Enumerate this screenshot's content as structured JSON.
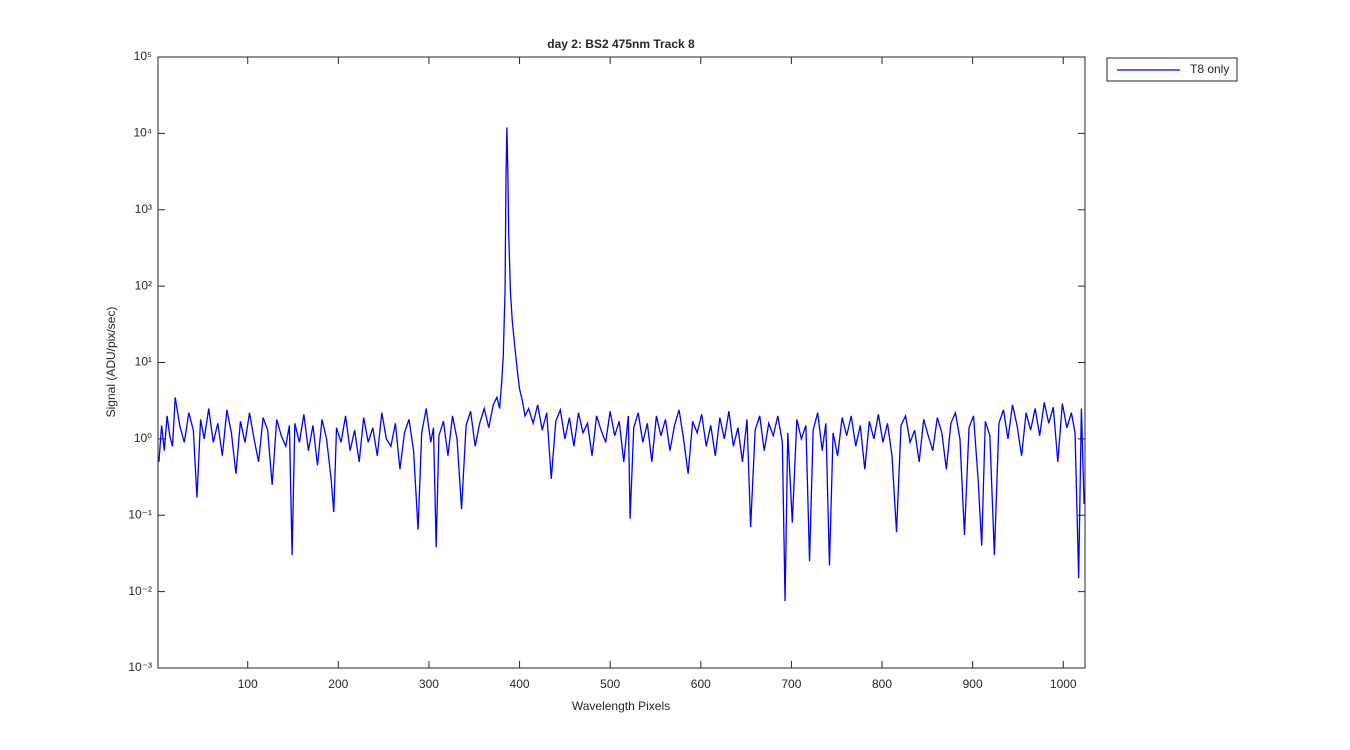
{
  "chart_data": {
    "type": "line",
    "title": "day 2: BS2  475nm  Track 8",
    "x_label": "Wavelength Pixels",
    "y_label": "Signal (ADU/pix/sec)",
    "log_y": true,
    "legend": "outside-top-right",
    "xlim": [
      1,
      1024
    ],
    "xticks": [
      100,
      200,
      300,
      400,
      500,
      600,
      700,
      800,
      900,
      1000
    ],
    "ylim": [
      0.001,
      100000
    ],
    "yticks": [
      {
        "value": 0.001,
        "label": "10⁻³"
      },
      {
        "value": 0.01,
        "label": "10⁻²"
      },
      {
        "value": 0.1,
        "label": "10⁻¹"
      },
      {
        "value": 1,
        "label": "10⁰"
      },
      {
        "value": 10,
        "label": "10¹"
      },
      {
        "value": 100,
        "label": "10²"
      },
      {
        "value": 1000,
        "label": "10³"
      },
      {
        "value": 10000,
        "label": "10⁴"
      },
      {
        "value": 100000,
        "label": "10⁵"
      }
    ],
    "x": [
      2,
      5,
      8,
      11,
      14,
      17,
      20,
      25,
      30,
      35,
      40,
      44,
      48,
      52,
      57,
      62,
      67,
      72,
      77,
      82,
      87,
      92,
      97,
      102,
      107,
      112,
      117,
      122,
      127,
      132,
      137,
      142,
      146,
      149,
      152,
      157,
      162,
      167,
      172,
      177,
      182,
      187,
      192,
      195,
      198,
      203,
      208,
      213,
      218,
      223,
      228,
      233,
      238,
      243,
      248,
      253,
      258,
      263,
      268,
      273,
      278,
      283,
      288,
      292,
      297,
      302,
      305,
      308,
      311,
      316,
      321,
      326,
      331,
      336,
      341,
      346,
      351,
      356,
      361,
      366,
      371,
      375,
      378,
      380,
      382,
      384,
      385,
      386,
      387,
      388,
      390,
      392,
      395,
      398,
      400,
      403,
      406,
      410,
      415,
      420,
      425,
      430,
      435,
      440,
      445,
      450,
      455,
      460,
      465,
      470,
      475,
      480,
      485,
      490,
      495,
      500,
      505,
      510,
      515,
      520,
      522,
      526,
      531,
      536,
      541,
      546,
      551,
      556,
      561,
      566,
      571,
      576,
      581,
      586,
      591,
      596,
      601,
      606,
      611,
      616,
      621,
      626,
      631,
      636,
      641,
      646,
      651,
      655,
      660,
      665,
      670,
      675,
      680,
      685,
      690,
      693,
      696,
      701,
      706,
      711,
      716,
      720,
      724,
      729,
      734,
      738,
      742,
      746,
      751,
      756,
      761,
      766,
      771,
      776,
      781,
      786,
      791,
      796,
      801,
      806,
      811,
      816,
      821,
      826,
      831,
      836,
      841,
      846,
      851,
      856,
      861,
      866,
      871,
      876,
      881,
      886,
      891,
      896,
      901,
      906,
      910,
      914,
      919,
      924,
      929,
      934,
      939,
      944,
      949,
      954,
      959,
      964,
      969,
      974,
      979,
      984,
      989,
      994,
      999,
      1004,
      1009,
      1013,
      1017,
      1020,
      1023
    ],
    "series": [
      {
        "name": "T8 only",
        "color": "#0000ff",
        "values": [
          0.5,
          1.5,
          0.7,
          2,
          1.1,
          0.8,
          3.5,
          1.5,
          0.9,
          2.2,
          1.3,
          0.17,
          1.8,
          1.0,
          2.5,
          0.9,
          1.6,
          0.6,
          2.4,
          1.2,
          0.35,
          1.7,
          0.9,
          2.2,
          1.0,
          0.5,
          1.9,
          1.3,
          0.25,
          1.8,
          1.1,
          0.8,
          1.5,
          0.03,
          1.6,
          0.9,
          2.1,
          0.7,
          1.5,
          0.45,
          1.8,
          1.0,
          0.3,
          0.11,
          1.4,
          0.9,
          2.0,
          0.7,
          1.3,
          0.5,
          1.9,
          0.9,
          1.4,
          0.6,
          2.2,
          1.0,
          0.8,
          1.6,
          0.4,
          1.2,
          1.8,
          0.7,
          0.065,
          1.2,
          2.5,
          0.9,
          1.4,
          0.038,
          1.1,
          1.7,
          0.6,
          2.0,
          1.0,
          0.12,
          1.5,
          2.3,
          0.8,
          1.6,
          2.5,
          1.4,
          2.8,
          3.5,
          2.5,
          5,
          12,
          90,
          2500,
          12000,
          3500,
          500,
          80,
          35,
          15,
          7,
          4.5,
          3.2,
          2.0,
          2.5,
          1.6,
          2.8,
          1.3,
          2.2,
          0.3,
          1.7,
          2.4,
          1.0,
          1.9,
          0.8,
          2.2,
          1.2,
          1.6,
          0.6,
          2.0,
          1.3,
          0.9,
          2.3,
          1.1,
          1.7,
          0.5,
          2.0,
          0.09,
          1.4,
          2.2,
          0.9,
          1.6,
          0.5,
          2.0,
          1.1,
          1.8,
          0.7,
          1.5,
          2.4,
          1.0,
          0.35,
          1.7,
          1.2,
          2.1,
          0.8,
          1.5,
          0.6,
          1.9,
          1.0,
          2.3,
          0.8,
          1.4,
          0.5,
          1.8,
          0.07,
          1.3,
          2.0,
          0.7,
          1.6,
          1.1,
          2.0,
          0.9,
          0.0075,
          1.2,
          0.08,
          1.8,
          1.0,
          1.5,
          0.025,
          1.3,
          2.2,
          0.7,
          1.6,
          0.022,
          1.2,
          0.6,
          1.9,
          1.1,
          2.0,
          0.8,
          1.5,
          0.4,
          1.7,
          1.0,
          2.1,
          0.9,
          1.6,
          0.6,
          0.06,
          1.5,
          2.0,
          0.9,
          1.3,
          0.5,
          1.8,
          1.1,
          0.7,
          1.9,
          1.2,
          0.4,
          1.6,
          2.2,
          1.0,
          0.055,
          1.4,
          2.0,
          0.3,
          0.04,
          1.7,
          1.1,
          0.03,
          1.6,
          2.4,
          1.0,
          2.8,
          1.5,
          0.6,
          2.2,
          1.3,
          2.5,
          1.1,
          3.0,
          1.6,
          2.6,
          0.5,
          2.9,
          1.4,
          2.2,
          1.2,
          0.015,
          2.5,
          0.14
        ]
      }
    ]
  }
}
